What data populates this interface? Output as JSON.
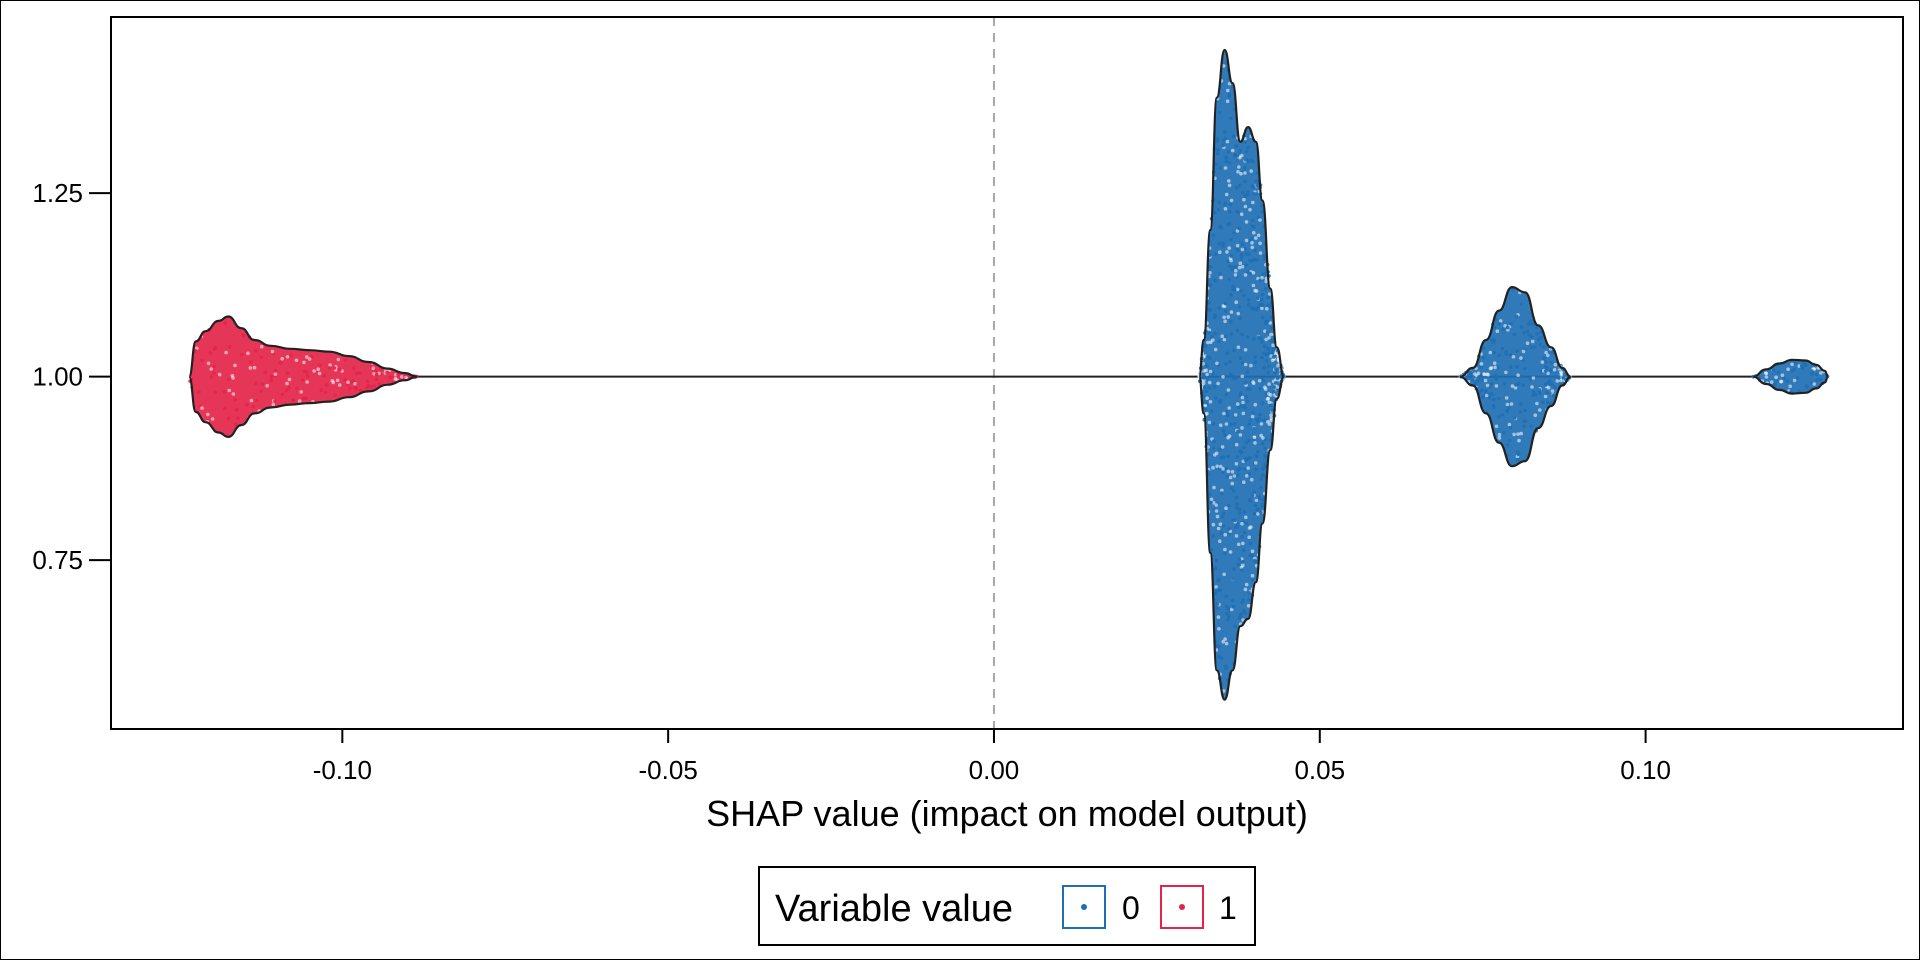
{
  "chart_data": {
    "type": "violin-beeswarm",
    "title": "",
    "xlabel": "SHAP value (impact on model output)",
    "ylabel": "",
    "xlim": [
      -0.1355,
      0.1395
    ],
    "ylim": [
      0.52,
      1.49
    ],
    "x_ticks": [
      -0.1,
      -0.05,
      0.0,
      0.05,
      0.1
    ],
    "x_tick_labels": [
      "-0.10",
      "-0.05",
      "0.00",
      "0.05",
      "0.10"
    ],
    "y_ticks": [
      0.75,
      1.0,
      1.25
    ],
    "y_tick_labels": [
      "0.75",
      "1.00",
      "1.25"
    ],
    "zero_line": 0.0,
    "grid": false,
    "legend": {
      "title": "Variable value",
      "placement": "bottom-center",
      "entries": [
        {
          "label": "0",
          "color": "#1f6fb4"
        },
        {
          "label": "1",
          "color": "#e3254a"
        }
      ]
    },
    "series": [
      {
        "name": "1",
        "color": "#e3254a",
        "clusters": [
          {
            "center": 1.0,
            "profile": [
              [
                -0.1235,
                0.0
              ],
              [
                -0.1225,
                0.048
              ],
              [
                -0.121,
                0.062
              ],
              [
                -0.119,
                0.076
              ],
              [
                -0.1175,
                0.082
              ],
              [
                -0.1155,
                0.066
              ],
              [
                -0.1135,
                0.05
              ],
              [
                -0.111,
                0.042
              ],
              [
                -0.108,
                0.038
              ],
              [
                -0.105,
                0.036
              ],
              [
                -0.102,
                0.034
              ],
              [
                -0.099,
                0.028
              ],
              [
                -0.096,
                0.02
              ],
              [
                -0.093,
                0.011
              ],
              [
                -0.0905,
                0.005
              ],
              [
                -0.0885,
                0.0
              ]
            ]
          }
        ]
      },
      {
        "name": "0",
        "color": "#1f6fb4",
        "clusters": [
          {
            "center": 1.0,
            "profile": [
              [
                0.0315,
                0.0
              ],
              [
                0.0322,
                0.05
              ],
              [
                0.0332,
                0.2
              ],
              [
                0.0342,
                0.38
              ],
              [
                0.0354,
                0.445
              ],
              [
                0.0366,
                0.4
              ],
              [
                0.0378,
                0.32
              ],
              [
                0.039,
                0.34
              ],
              [
                0.0402,
                0.32
              ],
              [
                0.0412,
                0.24
              ],
              [
                0.0424,
                0.12
              ],
              [
                0.0434,
                0.04
              ],
              [
                0.0445,
                0.0
              ]
            ],
            "profile_lower": [
              [
                0.0315,
                0.0
              ],
              [
                0.0322,
                0.05
              ],
              [
                0.0332,
                0.24
              ],
              [
                0.0342,
                0.4
              ],
              [
                0.0354,
                0.44
              ],
              [
                0.0366,
                0.4
              ],
              [
                0.0378,
                0.34
              ],
              [
                0.039,
                0.33
              ],
              [
                0.0402,
                0.28
              ],
              [
                0.0412,
                0.2
              ],
              [
                0.0424,
                0.1
              ],
              [
                0.0434,
                0.03
              ],
              [
                0.0445,
                0.0
              ]
            ]
          },
          {
            "center": 1.0,
            "profile": [
              [
                0.0715,
                0.0
              ],
              [
                0.0735,
                0.012
              ],
              [
                0.0755,
                0.05
              ],
              [
                0.0775,
                0.09
              ],
              [
                0.0795,
                0.122
              ],
              [
                0.0815,
                0.115
              ],
              [
                0.0835,
                0.07
              ],
              [
                0.0855,
                0.04
              ],
              [
                0.0872,
                0.012
              ],
              [
                0.0885,
                0.0
              ]
            ]
          },
          {
            "center": 1.0,
            "profile": [
              [
                0.1165,
                0.0
              ],
              [
                0.1185,
                0.01
              ],
              [
                0.1205,
                0.018
              ],
              [
                0.1225,
                0.023
              ],
              [
                0.1245,
                0.022
              ],
              [
                0.1262,
                0.016
              ],
              [
                0.1275,
                0.008
              ],
              [
                0.128,
                0.0
              ]
            ]
          }
        ]
      }
    ]
  }
}
